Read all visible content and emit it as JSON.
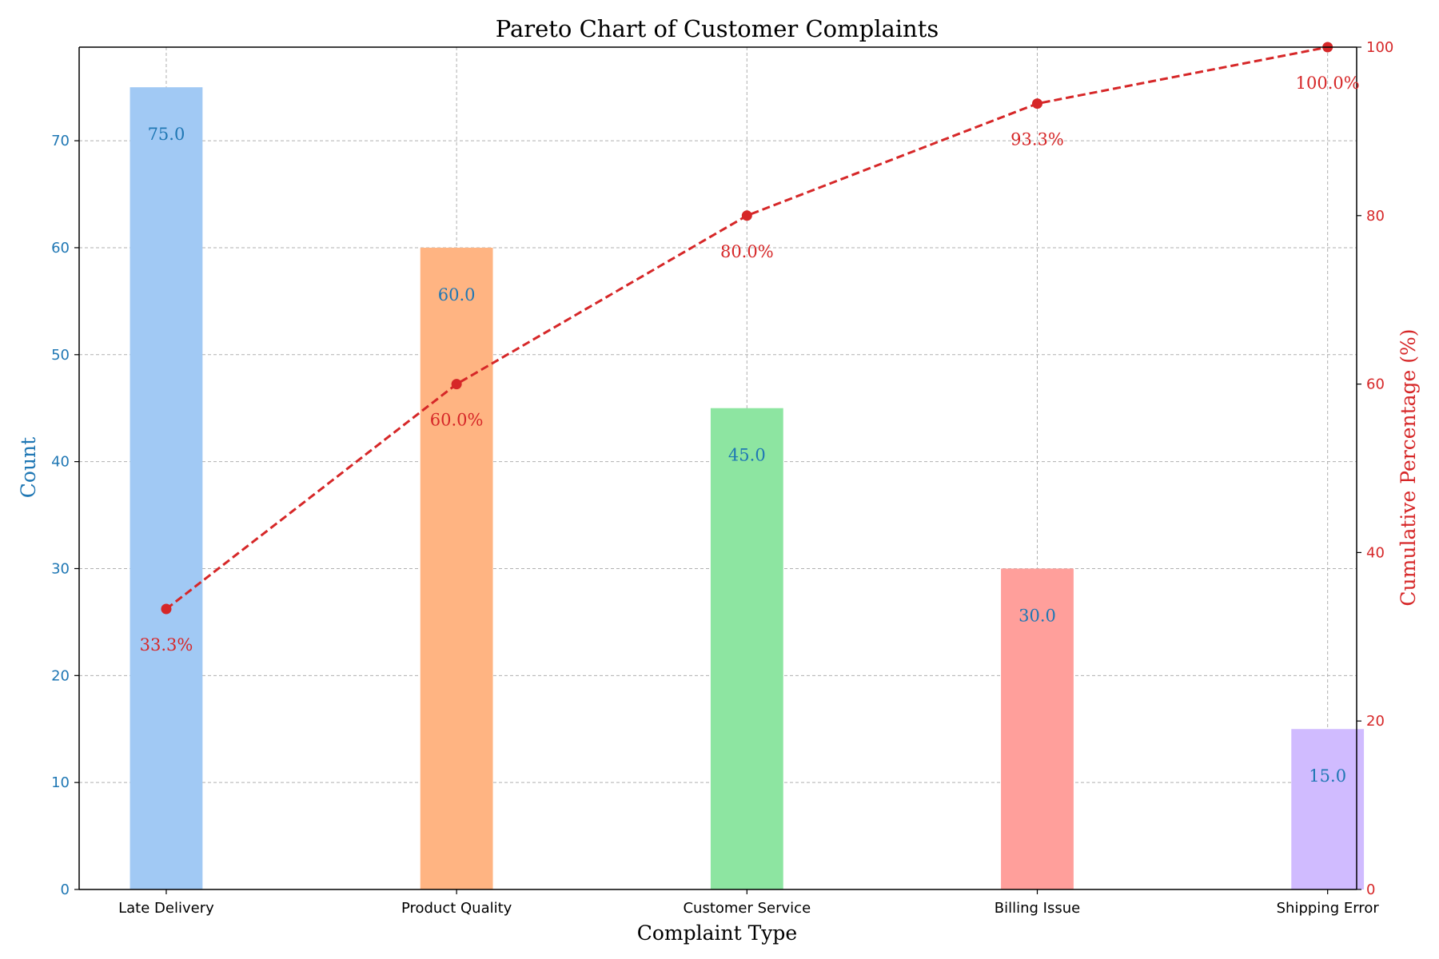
{
  "chart_data": {
    "type": "bar",
    "title": "Pareto Chart of Customer Complaints",
    "xlabel": "Complaint Type",
    "ylabel": "Count",
    "y2label": "Cumulative Percentage (%)",
    "categories": [
      "Late Delivery",
      "Product Quality",
      "Customer Service",
      "Billing Issue",
      "Shipping Error"
    ],
    "series": [
      {
        "kind": "bar",
        "axis": "left",
        "values": [
          75,
          60,
          45,
          30,
          15
        ],
        "value_labels": [
          "75.0",
          "60.0",
          "45.0",
          "30.0",
          "15.0"
        ],
        "colors": [
          "#a1c9f4",
          "#ffb482",
          "#8de5a1",
          "#ff9f9b",
          "#d0bbff"
        ]
      },
      {
        "kind": "line",
        "axis": "right",
        "line_style": "dashed",
        "marker": "circle",
        "values": [
          33.3,
          60.0,
          80.0,
          93.3,
          100.0
        ],
        "value_labels": [
          "33.3%",
          "60.0%",
          "80.0%",
          "93.3%",
          "100.0%"
        ],
        "color": "#d62728"
      }
    ],
    "ylim": [
      0,
      78.75
    ],
    "y2lim": [
      0,
      100
    ],
    "yticks": [
      0,
      10,
      20,
      30,
      40,
      50,
      60,
      70
    ],
    "y2ticks": [
      0,
      20,
      40,
      60,
      80,
      100
    ],
    "grid": true,
    "colors": {
      "left_axis": "#1f77b4",
      "right_axis": "#d62728",
      "bar_label": "#1f77b4",
      "line_label": "#d62728",
      "grid": "#b0b0b0"
    }
  }
}
